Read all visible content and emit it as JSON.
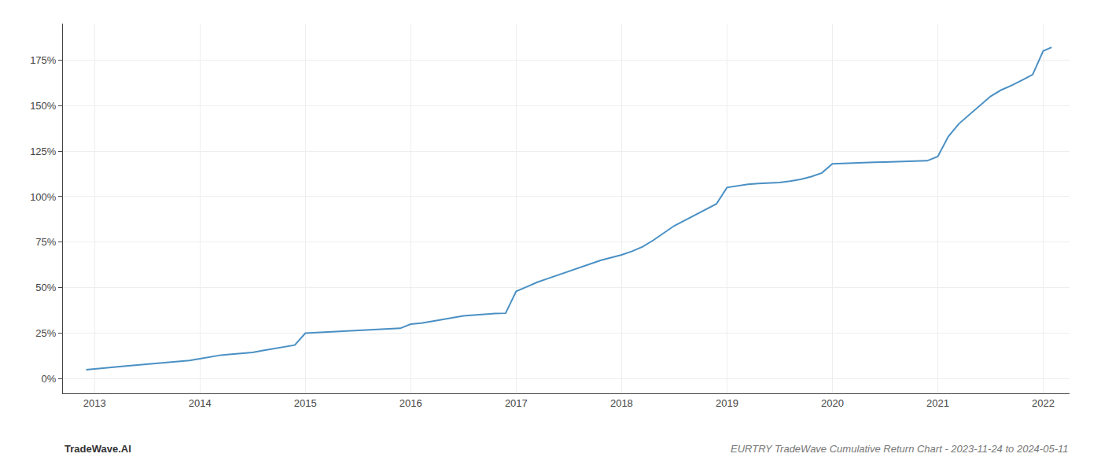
{
  "chart_data": {
    "type": "line",
    "annotations": [
      "TradeWave.AI",
      "EURTRY TradeWave Cumulative Return Chart - 2023-11-24 to 2024-05-11"
    ],
    "x": [
      2012.92,
      2013.0,
      2013.1,
      2013.2,
      2013.3,
      2013.4,
      2013.5,
      2013.6,
      2013.7,
      2013.8,
      2013.9,
      2014.0,
      2014.1,
      2014.2,
      2014.3,
      2014.4,
      2014.5,
      2014.6,
      2014.7,
      2014.8,
      2014.9,
      2015.0,
      2015.1,
      2015.2,
      2015.3,
      2015.4,
      2015.5,
      2015.6,
      2015.7,
      2015.8,
      2015.9,
      2016.0,
      2016.1,
      2016.2,
      2016.3,
      2016.4,
      2016.5,
      2016.6,
      2016.7,
      2016.8,
      2016.9,
      2017.0,
      2017.1,
      2017.2,
      2017.3,
      2017.4,
      2017.5,
      2017.6,
      2017.7,
      2017.8,
      2017.9,
      2018.0,
      2018.1,
      2018.2,
      2018.3,
      2018.4,
      2018.5,
      2018.6,
      2018.7,
      2018.8,
      2018.9,
      2019.0,
      2019.1,
      2019.2,
      2019.3,
      2019.4,
      2019.5,
      2019.6,
      2019.7,
      2019.8,
      2019.9,
      2020.0,
      2020.1,
      2020.2,
      2020.3,
      2020.4,
      2020.5,
      2020.6,
      2020.7,
      2020.8,
      2020.9,
      2021.0,
      2021.1,
      2021.2,
      2021.3,
      2021.4,
      2021.5,
      2021.6,
      2021.7,
      2021.8,
      2021.9,
      2022.0,
      2022.08
    ],
    "values": [
      5.0,
      5.5,
      6.0,
      6.5,
      7.0,
      7.5,
      8.0,
      8.5,
      9.0,
      9.5,
      10.0,
      11.0,
      12.0,
      13.0,
      13.5,
      14.0,
      14.5,
      15.5,
      16.5,
      17.5,
      18.5,
      25.0,
      25.3,
      25.6,
      25.9,
      26.2,
      26.5,
      26.8,
      27.1,
      27.4,
      27.7,
      30.0,
      30.5,
      31.5,
      32.5,
      33.5,
      34.5,
      35.0,
      35.5,
      35.8,
      36.0,
      48.0,
      50.5,
      53.0,
      55.0,
      57.0,
      59.0,
      61.0,
      63.0,
      65.0,
      66.5,
      68.0,
      70.0,
      72.5,
      76.0,
      80.0,
      84.0,
      87.0,
      90.0,
      93.0,
      96.0,
      105.0,
      106.0,
      106.8,
      107.2,
      107.5,
      107.8,
      108.5,
      109.5,
      111.0,
      113.0,
      118.0,
      118.3,
      118.5,
      118.7,
      118.9,
      119.0,
      119.1,
      119.2,
      119.4,
      119.7,
      122.0,
      133.0,
      140.0,
      145.0,
      150.0,
      155.0,
      158.5,
      161.0,
      164.0,
      167.0,
      180.0,
      182.0
    ],
    "color": "#4a90c4",
    "xlim": [
      2012.7,
      2022.25
    ],
    "xticks": [
      2013,
      2014,
      2015,
      2016,
      2017,
      2018,
      2019,
      2020,
      2021,
      2022
    ],
    "ylim": [
      -8,
      195
    ],
    "yticks": [
      {
        "value": 0,
        "label": "0%"
      },
      {
        "value": 25,
        "label": "25%"
      },
      {
        "value": 50,
        "label": "50%"
      },
      {
        "value": 75,
        "label": "75%"
      },
      {
        "value": 100,
        "label": "100%"
      },
      {
        "value": 125,
        "label": "125%"
      },
      {
        "value": 150,
        "label": "150%"
      },
      {
        "value": 175,
        "label": "175%"
      }
    ],
    "grid": true
  }
}
